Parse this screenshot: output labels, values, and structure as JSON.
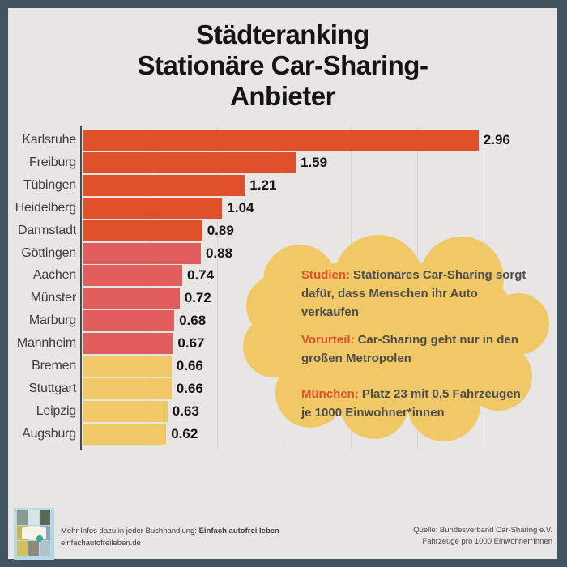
{
  "title": {
    "lines": [
      "Städteranking",
      "Stationäre Car-Sharing-",
      "Anbieter"
    ]
  },
  "chart_data": {
    "type": "bar",
    "orientation": "horizontal",
    "title": "Städteranking Stationäre Car-Sharing-Anbieter",
    "xlabel": "Fahrzeuge pro 1000 Einwohner*Innen",
    "ylabel": "",
    "xlim": [
      0,
      3.5
    ],
    "grid": true,
    "gridline_values": [
      0.5,
      1.0,
      1.5,
      2.0,
      2.5,
      3.0
    ],
    "categories": [
      "Karlsruhe",
      "Freiburg",
      "Tübingen",
      "Heidelberg",
      "Darmstadt",
      "Göttingen",
      "Aachen",
      "Münster",
      "Marburg",
      "Mannheim",
      "Bremen",
      "Stuttgart",
      "Leipzig",
      "Augsburg"
    ],
    "values": [
      2.96,
      1.59,
      1.21,
      1.04,
      0.89,
      0.88,
      0.74,
      0.72,
      0.68,
      0.67,
      0.66,
      0.66,
      0.63,
      0.62
    ],
    "value_labels": [
      "2.96",
      "1.59",
      "1.21",
      "1.04",
      "0.89",
      "0.88",
      "0.74",
      "0.72",
      "0.68",
      "0.67",
      "0.66",
      "0.66",
      "0.63",
      "0.62"
    ],
    "bar_colors": [
      "#e0502a",
      "#e0502a",
      "#e0502a",
      "#e0502a",
      "#e0502a",
      "#e15d5c",
      "#e15d5c",
      "#e15d5c",
      "#e15d5c",
      "#e15d5c",
      "#f0c966",
      "#f0c966",
      "#f0c966",
      "#f0c966"
    ]
  },
  "cloud": {
    "notes": [
      {
        "highlight": "Studien:",
        "text": "Stationäres Car-Sharing sorgt dafür, dass Menschen ihr Auto verkaufen"
      },
      {
        "highlight": "Vorurteil:",
        "text": "Car-Sharing geht nur in den großen Metropolen"
      },
      {
        "highlight": "München:",
        "text": "Platz 23 mit 0,5 Fahrzeugen je 1000 Einwohner*innen"
      }
    ]
  },
  "footer": {
    "left_line1_prefix": "Mehr Infos dazu in jeder Buchhandlung: ",
    "left_line1_bold": "Einfach autofrei leben",
    "left_line2": "einfachautofreileben.de",
    "right_line1": "Quelle: Bundesverband Car-Sharing e.V.",
    "right_line2": "Fahrzeuge pro 1000 Einwohner*Innen",
    "book_cover_alt": "Einfach autofrei leben Buchcover"
  },
  "colors": {
    "frame": "#42545f",
    "background": "#e7e6e4",
    "bar_orange": "#e0502a",
    "bar_red": "#e15d5c",
    "bar_yellow": "#f0c966",
    "cloud": "#f0c966",
    "highlight": "#e2502c",
    "gridline": "#d8d7d4",
    "axis": "#4a4a48",
    "text_dark": "#141414"
  }
}
